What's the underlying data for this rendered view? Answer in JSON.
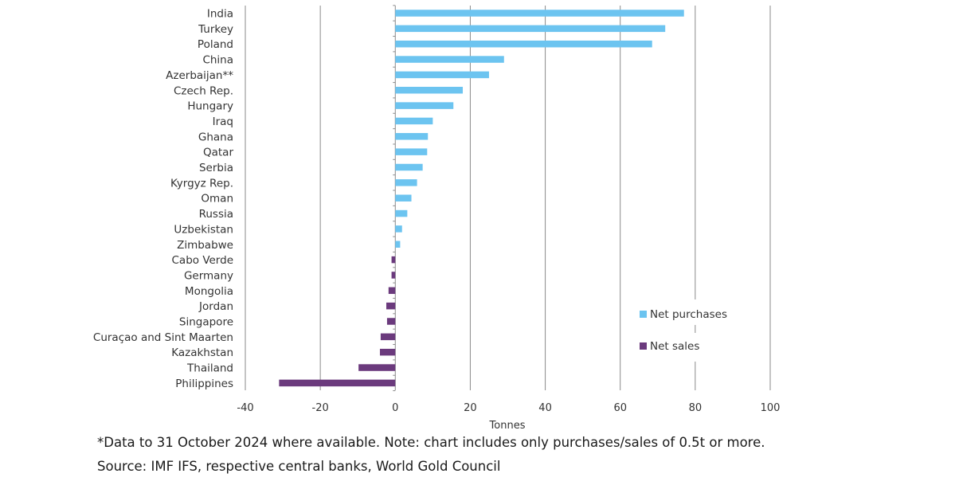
{
  "chart_data": {
    "type": "bar",
    "orientation": "horizontal",
    "categories": [
      "India",
      "Turkey",
      "Poland",
      "China",
      "Azerbaijan**",
      "Czech Rep.",
      "Hungary",
      "Iraq",
      "Ghana",
      "Qatar",
      "Serbia",
      "Kyrgyz Rep.",
      "Oman",
      "Russia",
      "Uzbekistan",
      "Zimbabwe",
      "Cabo Verde",
      "Germany",
      "Mongolia",
      "Jordan",
      "Singapore",
      "Curaçao and Sint Maarten",
      "Kazakhstan",
      "Thailand",
      "Philippines"
    ],
    "values": [
      77,
      72,
      68.5,
      29,
      25,
      18,
      15.5,
      10,
      8.7,
      8.5,
      7.3,
      5.8,
      4.3,
      3.2,
      1.8,
      1.3,
      -1,
      -1,
      -1.8,
      -2.4,
      -2.2,
      -3.9,
      -4.1,
      -9.8,
      -31
    ],
    "xlabel": "Tonnes",
    "ylabel": "",
    "xlim": [
      -40,
      100
    ],
    "xticks": [
      "-40",
      "-20",
      "0",
      "20",
      "40",
      "60",
      "80",
      "100"
    ],
    "grid": "vertical",
    "legend": {
      "placement": "bottom-right",
      "entries": [
        {
          "name": "Net purchases",
          "color": "#6cc4f0"
        },
        {
          "name": "Net sales",
          "color": "#6b3a7d"
        }
      ]
    }
  },
  "footnotes": {
    "note": "*Data to 31 October 2024 where available. Note: chart includes only purchases/sales of 0.5t or more.",
    "source": "Source: IMF IFS, respective central banks, World Gold Council"
  }
}
